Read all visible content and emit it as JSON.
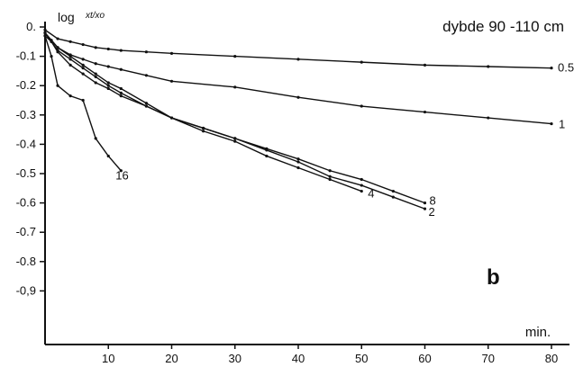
{
  "chart_data": {
    "type": "line",
    "title": "",
    "ylabel": "log xt/x0",
    "ylabel_main": "log",
    "ylabel_frac": "xt/xo",
    "xlabel": "min.",
    "depth_label": "dybde 90 -110 cm",
    "panel_label": "b",
    "xlim": [
      0,
      80
    ],
    "ylim": [
      -1.0,
      0.0
    ],
    "x_ticks": [
      10,
      20,
      30,
      40,
      50,
      60,
      70,
      80
    ],
    "x_tick_labels": [
      "10",
      "20",
      "30",
      "40",
      "50",
      "60",
      "70",
      "80"
    ],
    "y_ticks": [
      0.0,
      -0.1,
      -0.2,
      -0.3,
      -0.4,
      -0.5,
      -0.6,
      -0.7,
      -0.8,
      -0.9
    ],
    "y_tick_labels": [
      "0.",
      "-0.1",
      "-0.2",
      "-0.3",
      "-0.4",
      "-0.5",
      "-0.6",
      "-0.7",
      "-0.8",
      "-0,9"
    ],
    "grid": false,
    "legend": "none",
    "series": [
      {
        "name": "0.5",
        "x": [
          0,
          2,
          4,
          6,
          8,
          10,
          12,
          16,
          20,
          30,
          40,
          50,
          60,
          70,
          80
        ],
        "y": [
          -0.01,
          -0.04,
          -0.05,
          -0.06,
          -0.07,
          -0.075,
          -0.08,
          -0.085,
          -0.09,
          -0.1,
          -0.11,
          -0.12,
          -0.13,
          -0.135,
          -0.14
        ]
      },
      {
        "name": "1",
        "x": [
          0,
          2,
          4,
          6,
          8,
          10,
          12,
          16,
          20,
          30,
          40,
          50,
          60,
          70,
          80
        ],
        "y": [
          -0.02,
          -0.07,
          -0.095,
          -0.11,
          -0.125,
          -0.135,
          -0.145,
          -0.165,
          -0.185,
          -0.205,
          -0.24,
          -0.27,
          -0.29,
          -0.31,
          -0.33
        ]
      },
      {
        "name": "2",
        "x": [
          0,
          1,
          2,
          4,
          6,
          8,
          10,
          12,
          16,
          20,
          25,
          30,
          35,
          40,
          45,
          50,
          55,
          60
        ],
        "y": [
          -0.03,
          -0.05,
          -0.08,
          -0.11,
          -0.14,
          -0.17,
          -0.2,
          -0.225,
          -0.27,
          -0.31,
          -0.345,
          -0.38,
          -0.42,
          -0.46,
          -0.51,
          -0.54,
          -0.58,
          -0.62
        ]
      },
      {
        "name": "4",
        "x": [
          0,
          1,
          2,
          4,
          6,
          8,
          10,
          12,
          16,
          20,
          25,
          30,
          35,
          40,
          45,
          50
        ],
        "y": [
          -0.02,
          -0.05,
          -0.085,
          -0.13,
          -0.16,
          -0.19,
          -0.21,
          -0.235,
          -0.27,
          -0.31,
          -0.355,
          -0.39,
          -0.44,
          -0.48,
          -0.52,
          -0.56
        ]
      },
      {
        "name": "8",
        "x": [
          0,
          1,
          2,
          4,
          6,
          8,
          10,
          12,
          16,
          20,
          25,
          30,
          35,
          40,
          45,
          50,
          55,
          60
        ],
        "y": [
          -0.02,
          -0.045,
          -0.07,
          -0.1,
          -0.13,
          -0.16,
          -0.19,
          -0.21,
          -0.26,
          -0.31,
          -0.345,
          -0.38,
          -0.415,
          -0.45,
          -0.49,
          -0.52,
          -0.56,
          -0.6
        ]
      },
      {
        "name": "16",
        "x": [
          0,
          1,
          2,
          4,
          6,
          8,
          10,
          12
        ],
        "y": [
          -0.03,
          -0.1,
          -0.2,
          -0.235,
          -0.25,
          -0.38,
          -0.44,
          -0.49
        ]
      }
    ]
  }
}
